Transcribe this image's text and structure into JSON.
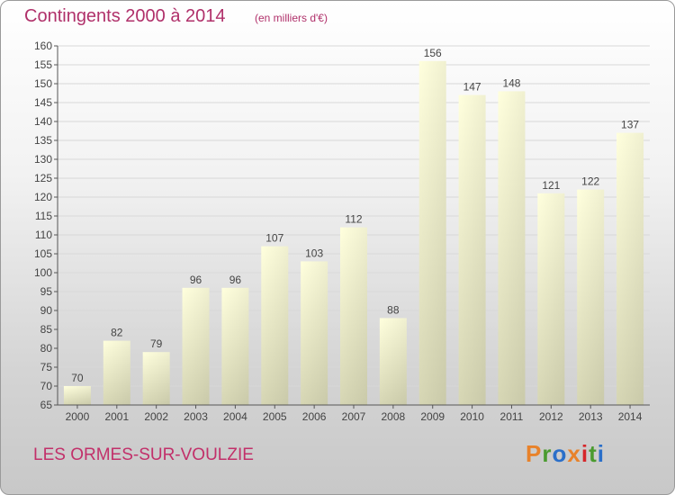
{
  "header": {
    "title": "Contingents 2000 à 2014",
    "subtitle": "(en milliers d'€)"
  },
  "footer": {
    "commune": "LES ORMES-SUR-VOULZIE",
    "brand": "Proxiti",
    "brand_colors": [
      "#e8822a",
      "#4a9b2f",
      "#2a6fc9",
      "#e8822a",
      "#d6262a",
      "#4a9b2f",
      "#2a6fc9"
    ]
  },
  "colors": {
    "title": "#b0306a",
    "bar_top": "#ffffdd",
    "bar_bottom": "#d6d6b4",
    "grid": "#d8d8d8"
  },
  "chart_data": {
    "type": "bar",
    "title": "Contingents 2000 à 2014",
    "subtitle": "(en milliers d'€)",
    "categories": [
      "2000",
      "2001",
      "2002",
      "2003",
      "2004",
      "2005",
      "2006",
      "2007",
      "2008",
      "2009",
      "2010",
      "2011",
      "2012",
      "2013",
      "2014"
    ],
    "values": [
      70,
      82,
      79,
      96,
      96,
      107,
      103,
      112,
      88,
      156,
      147,
      148,
      121,
      122,
      137
    ],
    "ylim": [
      65,
      160
    ],
    "ytick_step": 5,
    "grid": true
  }
}
